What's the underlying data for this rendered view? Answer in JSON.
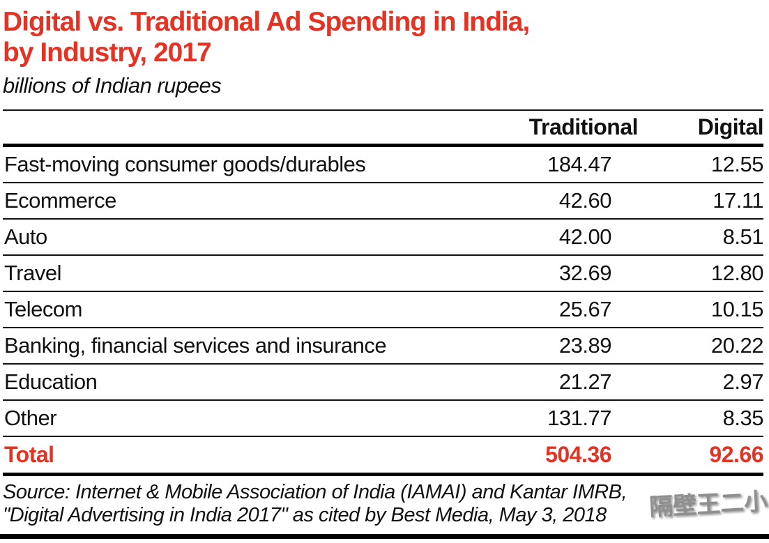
{
  "header": {
    "title_line1": "Digital vs. Traditional Ad Spending in India,",
    "title_line2": "by Industry, 2017",
    "subtitle": "billions of Indian rupees"
  },
  "chart_data": {
    "type": "table",
    "title": "Digital vs. Traditional Ad Spending in India, by Industry, 2017",
    "unit": "billions of Indian rupees",
    "columns": [
      "Traditional",
      "Digital"
    ],
    "rows": [
      {
        "label": "Fast-moving consumer goods/durables",
        "traditional": "184.47",
        "digital": "12.55"
      },
      {
        "label": "Ecommerce",
        "traditional": "42.60",
        "digital": "17.11"
      },
      {
        "label": "Auto",
        "traditional": "42.00",
        "digital": "8.51"
      },
      {
        "label": "Travel",
        "traditional": "32.69",
        "digital": "12.80"
      },
      {
        "label": "Telecom",
        "traditional": "25.67",
        "digital": "10.15"
      },
      {
        "label": "Banking, financial services and insurance",
        "traditional": "23.89",
        "digital": "20.22"
      },
      {
        "label": "Education",
        "traditional": "21.27",
        "digital": "2.97"
      },
      {
        "label": "Other",
        "traditional": "131.77",
        "digital": "8.35"
      }
    ],
    "total": {
      "label": "Total",
      "traditional": "504.36",
      "digital": "92.66"
    }
  },
  "source": {
    "line1": "Source: Internet & Mobile Association of India (IAMAI) and Kantar IMRB,",
    "line2": "\"Digital Advertising in India 2017\" as cited by Best Media, May 3, 2018"
  },
  "watermark": "隔壁王二小",
  "colors": {
    "accent_red": "#e53223",
    "text": "#111111",
    "rule": "#000000"
  }
}
